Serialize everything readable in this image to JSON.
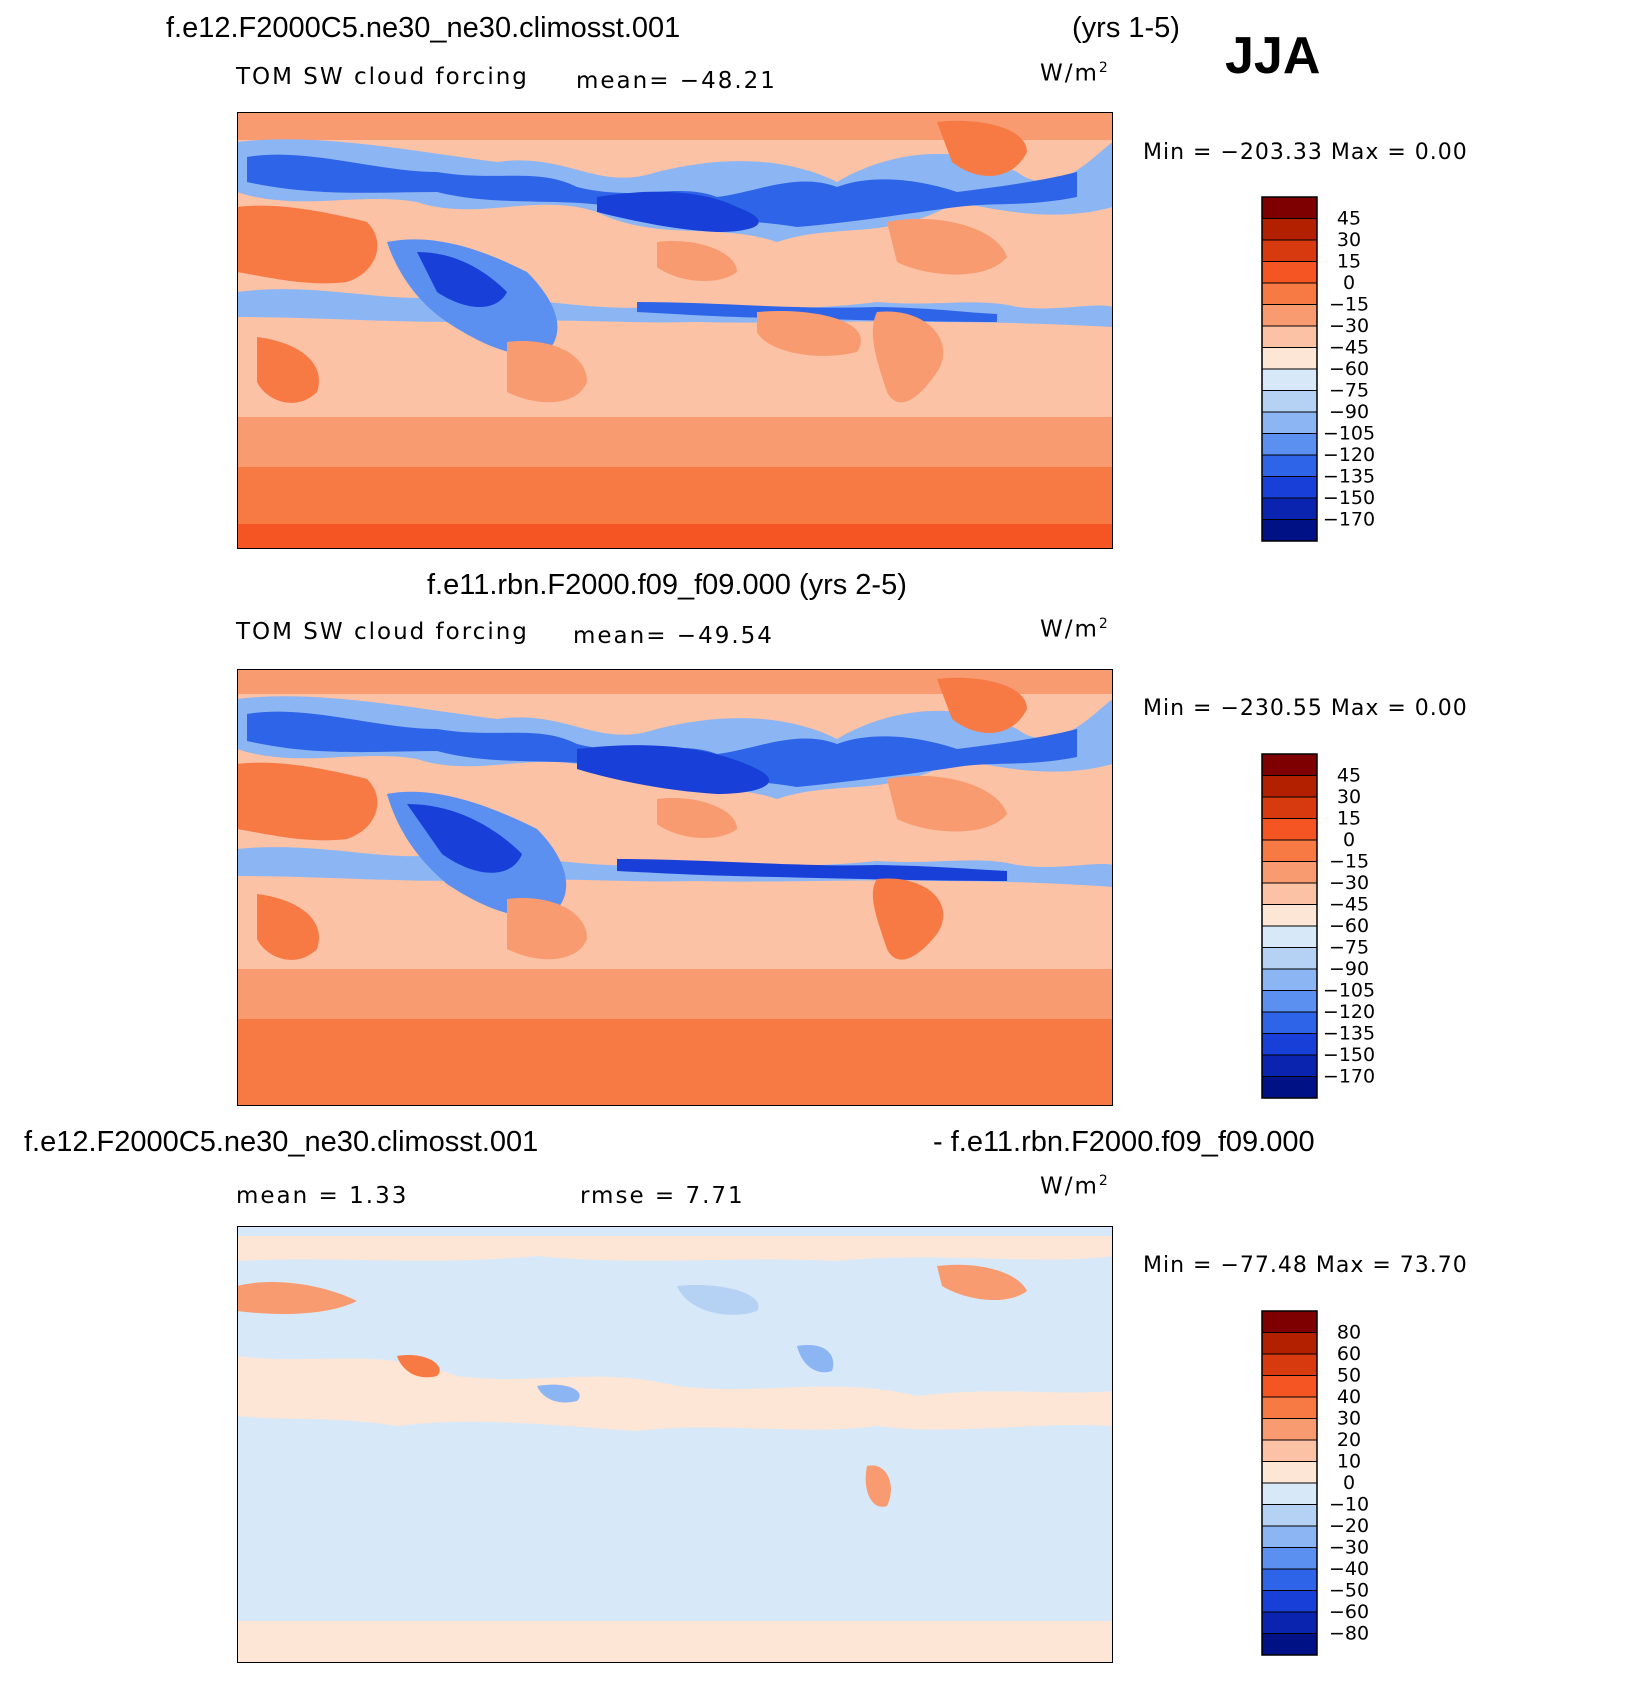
{
  "season": "JJA",
  "panels": [
    {
      "title_left": "f.e12.F2000C5.ne30_ne30.climosst.001",
      "title_right": "(yrs 1-5)",
      "field_label": "TOM SW cloud forcing",
      "stat1": "mean=  −48.21",
      "stat2": "",
      "units": "W/m",
      "units_exp": "2",
      "min_label": "Min  =  −203.33  Max  =      0.00",
      "colorbar": {
        "levels": [
          "45",
          "30",
          "15",
          "0",
          "−15",
          "−30",
          "−45",
          "−60",
          "−75",
          "−90",
          "−105",
          "−120",
          "−135",
          "−150",
          "−170"
        ],
        "colors": [
          "#7f0000",
          "#b22000",
          "#d83a10",
          "#f55522",
          "#f77a45",
          "#f99b70",
          "#fbc2a5",
          "#fde6d6",
          "#d7e8f8",
          "#b5d2f5",
          "#8cb5f3",
          "#5b8ff0",
          "#2e64e8",
          "#1840d8",
          "#0a24b0",
          "#001085"
        ]
      }
    },
    {
      "title_left": "f.e11.rbn.F2000.f09_f09.000 (yrs 2-5)",
      "title_right": "",
      "field_label": "TOM SW cloud forcing",
      "stat1": "mean=  −49.54",
      "stat2": "",
      "units": "W/m",
      "units_exp": "2",
      "min_label": "Min  =  −230.55  Max  =      0.00",
      "colorbar": {
        "levels": [
          "45",
          "30",
          "15",
          "0",
          "−15",
          "−30",
          "−45",
          "−60",
          "−75",
          "−90",
          "−105",
          "−120",
          "−135",
          "−150",
          "−170"
        ],
        "colors": [
          "#7f0000",
          "#b22000",
          "#d83a10",
          "#f55522",
          "#f77a45",
          "#f99b70",
          "#fbc2a5",
          "#fde6d6",
          "#d7e8f8",
          "#b5d2f5",
          "#8cb5f3",
          "#5b8ff0",
          "#2e64e8",
          "#1840d8",
          "#0a24b0",
          "#001085"
        ]
      }
    },
    {
      "title_left": "f.e12.F2000C5.ne30_ne30.climosst.001",
      "title_right": "- f.e11.rbn.F2000.f09_f09.000",
      "field_label": "",
      "stat1": "mean  =      1.33",
      "stat2": "rmse  =      7.71",
      "units": "W/m",
      "units_exp": "2",
      "min_label": "Min  =  −77.48  Max  =    73.70",
      "colorbar": {
        "levels": [
          "80",
          "60",
          "50",
          "40",
          "30",
          "20",
          "10",
          "0",
          "−10",
          "−20",
          "−30",
          "−40",
          "−50",
          "−60",
          "−80"
        ],
        "colors": [
          "#7f0000",
          "#b22000",
          "#d83a10",
          "#f55522",
          "#f77a45",
          "#f99b70",
          "#fbc2a5",
          "#fde6d6",
          "#d7e8f8",
          "#b5d2f5",
          "#8cb5f3",
          "#5b8ff0",
          "#2e64e8",
          "#1840d8",
          "#0a24b0",
          "#001085"
        ]
      }
    }
  ],
  "chart_data": [
    {
      "type": "heatmap",
      "title": "f.e12.F2000C5.ne30_ne30.climosst.001 (yrs 1-5)",
      "variable": "TOM SW cloud forcing",
      "units": "W/m2",
      "season": "JJA",
      "mean": -48.21,
      "min": -203.33,
      "max": 0.0,
      "contour_levels": [
        -170,
        -150,
        -135,
        -120,
        -105,
        -90,
        -75,
        -60,
        -45,
        -30,
        -15,
        0,
        15,
        30,
        45
      ]
    },
    {
      "type": "heatmap",
      "title": "f.e11.rbn.F2000.f09_f09.000 (yrs 2-5)",
      "variable": "TOM SW cloud forcing",
      "units": "W/m2",
      "season": "JJA",
      "mean": -49.54,
      "min": -230.55,
      "max": 0.0,
      "contour_levels": [
        -170,
        -150,
        -135,
        -120,
        -105,
        -90,
        -75,
        -60,
        -45,
        -30,
        -15,
        0,
        15,
        30,
        45
      ]
    },
    {
      "type": "heatmap",
      "title": "f.e12.F2000C5.ne30_ne30.climosst.001 - f.e11.rbn.F2000.f09_f09.000",
      "units": "W/m2",
      "season": "JJA",
      "mean": 1.33,
      "rmse": 7.71,
      "min": -77.48,
      "max": 73.7,
      "contour_levels": [
        -80,
        -60,
        -50,
        -40,
        -30,
        -20,
        -10,
        0,
        10,
        20,
        30,
        40,
        50,
        60,
        80
      ]
    }
  ]
}
